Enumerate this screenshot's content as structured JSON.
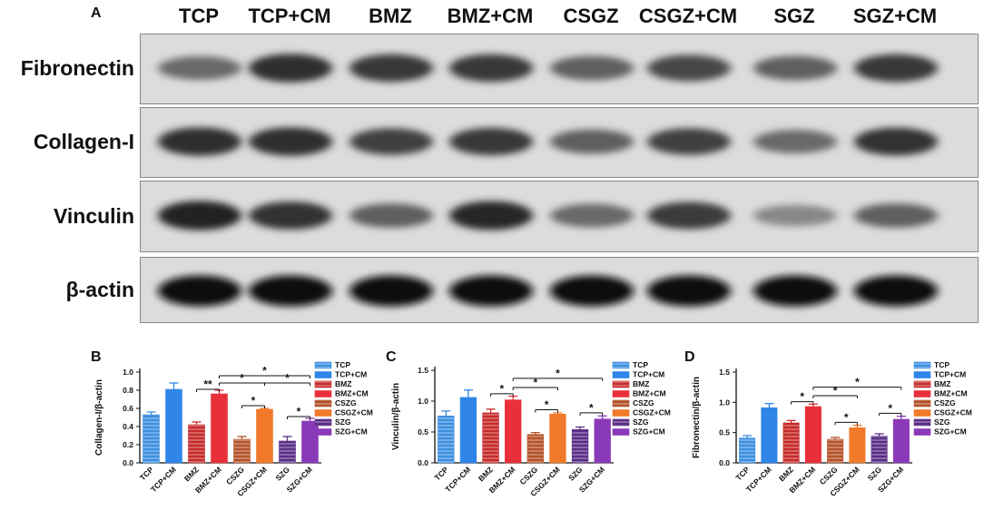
{
  "panel_a": {
    "letter": "A",
    "lanes": [
      "TCP",
      "TCP+CM",
      "BMZ",
      "BMZ+CM",
      "CSGZ",
      "CSGZ+CM",
      "SGZ",
      "SGZ+CM"
    ],
    "rows": [
      {
        "label": "Fibronectin",
        "intensities": [
          0.55,
          0.85,
          0.8,
          0.8,
          0.6,
          0.72,
          0.6,
          0.8
        ]
      },
      {
        "label": "Collagen-I",
        "intensities": [
          0.85,
          0.85,
          0.75,
          0.8,
          0.6,
          0.75,
          0.55,
          0.82
        ]
      },
      {
        "label": "Vinculin",
        "intensities": [
          0.9,
          0.82,
          0.6,
          0.88,
          0.55,
          0.78,
          0.4,
          0.6
        ]
      },
      {
        "label": "β-actin",
        "intensities": [
          1,
          1,
          1,
          1,
          1,
          1,
          1,
          1
        ]
      }
    ]
  },
  "colors": {
    "TCP": "#3d8fe0",
    "TCP+CM": "#2f86e8",
    "BMZ": "#c62a2a",
    "BMZ+CM": "#e8303a",
    "CSZG": "#b5522a",
    "CSGZ+CM": "#f07a2a",
    "SZG": "#5a2e86",
    "SZG+CM": "#8a3ab8"
  },
  "chart_data": [
    {
      "panel": "B",
      "type": "bar",
      "ylabel": "Collagen-I/β-actin",
      "ylim": [
        0,
        1.0
      ],
      "yticks": [
        "0.0",
        "0.2",
        "0.4",
        "0.6",
        "0.8",
        "1.0"
      ],
      "categories": [
        "TCP",
        "TCP+CM",
        "BMZ",
        "BMZ+CM",
        "CSZG",
        "CSGZ+CM",
        "SZG",
        "SZG+CM"
      ],
      "values": [
        0.53,
        0.81,
        0.42,
        0.76,
        0.26,
        0.59,
        0.24,
        0.46
      ],
      "errors": [
        0.03,
        0.07,
        0.03,
        0.04,
        0.03,
        0.01,
        0.05,
        0.03
      ],
      "legend": [
        "TCP",
        "TCP+CM",
        "BMZ",
        "BMZ+CM",
        "CSZG",
        "CSGZ+CM",
        "SZG",
        "SZG+CM"
      ],
      "significance": [
        {
          "from": 2,
          "to": 3,
          "label": "**",
          "level": 0.81
        },
        {
          "from": 4,
          "to": 5,
          "label": "*",
          "level": 0.63
        },
        {
          "from": 6,
          "to": 7,
          "label": "*",
          "level": 0.51
        },
        {
          "from": 3,
          "to": 5,
          "label": "*",
          "level": 0.88
        },
        {
          "from": 5,
          "to": 7,
          "label": "*",
          "level": 0.88
        },
        {
          "from": 3,
          "to": 7,
          "label": "*",
          "level": 0.96
        }
      ]
    },
    {
      "panel": "C",
      "type": "bar",
      "ylabel": "Vinculin/β-actin",
      "ylim": [
        0,
        1.5
      ],
      "yticks": [
        "0.0",
        "0.5",
        "1.0",
        "1.5"
      ],
      "categories": [
        "TCP",
        "TCP+CM",
        "BMZ",
        "BMZ+CM",
        "CSZG",
        "CSGZ+CM",
        "SZG",
        "SZG+CM"
      ],
      "values": [
        0.76,
        1.06,
        0.81,
        1.02,
        0.46,
        0.79,
        0.54,
        0.71
      ],
      "errors": [
        0.08,
        0.12,
        0.06,
        0.06,
        0.03,
        0.02,
        0.04,
        0.05
      ],
      "legend": [
        "TCP",
        "TCP+CM",
        "BMZ",
        "BMZ+CM",
        "CSZG",
        "CSGZ+CM",
        "SZG",
        "SZG+CM"
      ],
      "significance": [
        {
          "from": 2,
          "to": 3,
          "label": "*",
          "level": 1.12
        },
        {
          "from": 4,
          "to": 5,
          "label": "*",
          "level": 0.86
        },
        {
          "from": 6,
          "to": 7,
          "label": "*",
          "level": 0.81
        },
        {
          "from": 3,
          "to": 5,
          "label": "*",
          "level": 1.22
        },
        {
          "from": 3,
          "to": 7,
          "label": "*",
          "level": 1.37
        }
      ]
    },
    {
      "panel": "D",
      "type": "bar",
      "ylabel": "Fibronectin/β-actin",
      "ylim": [
        0,
        1.5
      ],
      "yticks": [
        "0.0",
        "0.5",
        "1.0",
        "1.5"
      ],
      "categories": [
        "TCP",
        "TCP+CM",
        "BMZ",
        "BMZ+CM",
        "CSZG",
        "CSGZ+CM",
        "SZG",
        "SZG+CM"
      ],
      "values": [
        0.41,
        0.91,
        0.66,
        0.93,
        0.39,
        0.58,
        0.44,
        0.72
      ],
      "errors": [
        0.04,
        0.07,
        0.04,
        0.04,
        0.03,
        0.04,
        0.04,
        0.05
      ],
      "legend": [
        "TCP",
        "TCP+CM",
        "BMZ",
        "BMZ+CM",
        "CSZG",
        "CSGZ+CM",
        "SZG",
        "SZG+CM"
      ],
      "significance": [
        {
          "from": 2,
          "to": 3,
          "label": "*",
          "level": 1.01
        },
        {
          "from": 4,
          "to": 5,
          "label": "*",
          "level": 0.67
        },
        {
          "from": 6,
          "to": 7,
          "label": "*",
          "level": 0.82
        },
        {
          "from": 3,
          "to": 5,
          "label": "*",
          "level": 1.11
        },
        {
          "from": 3,
          "to": 7,
          "label": "*",
          "level": 1.25
        }
      ]
    }
  ]
}
